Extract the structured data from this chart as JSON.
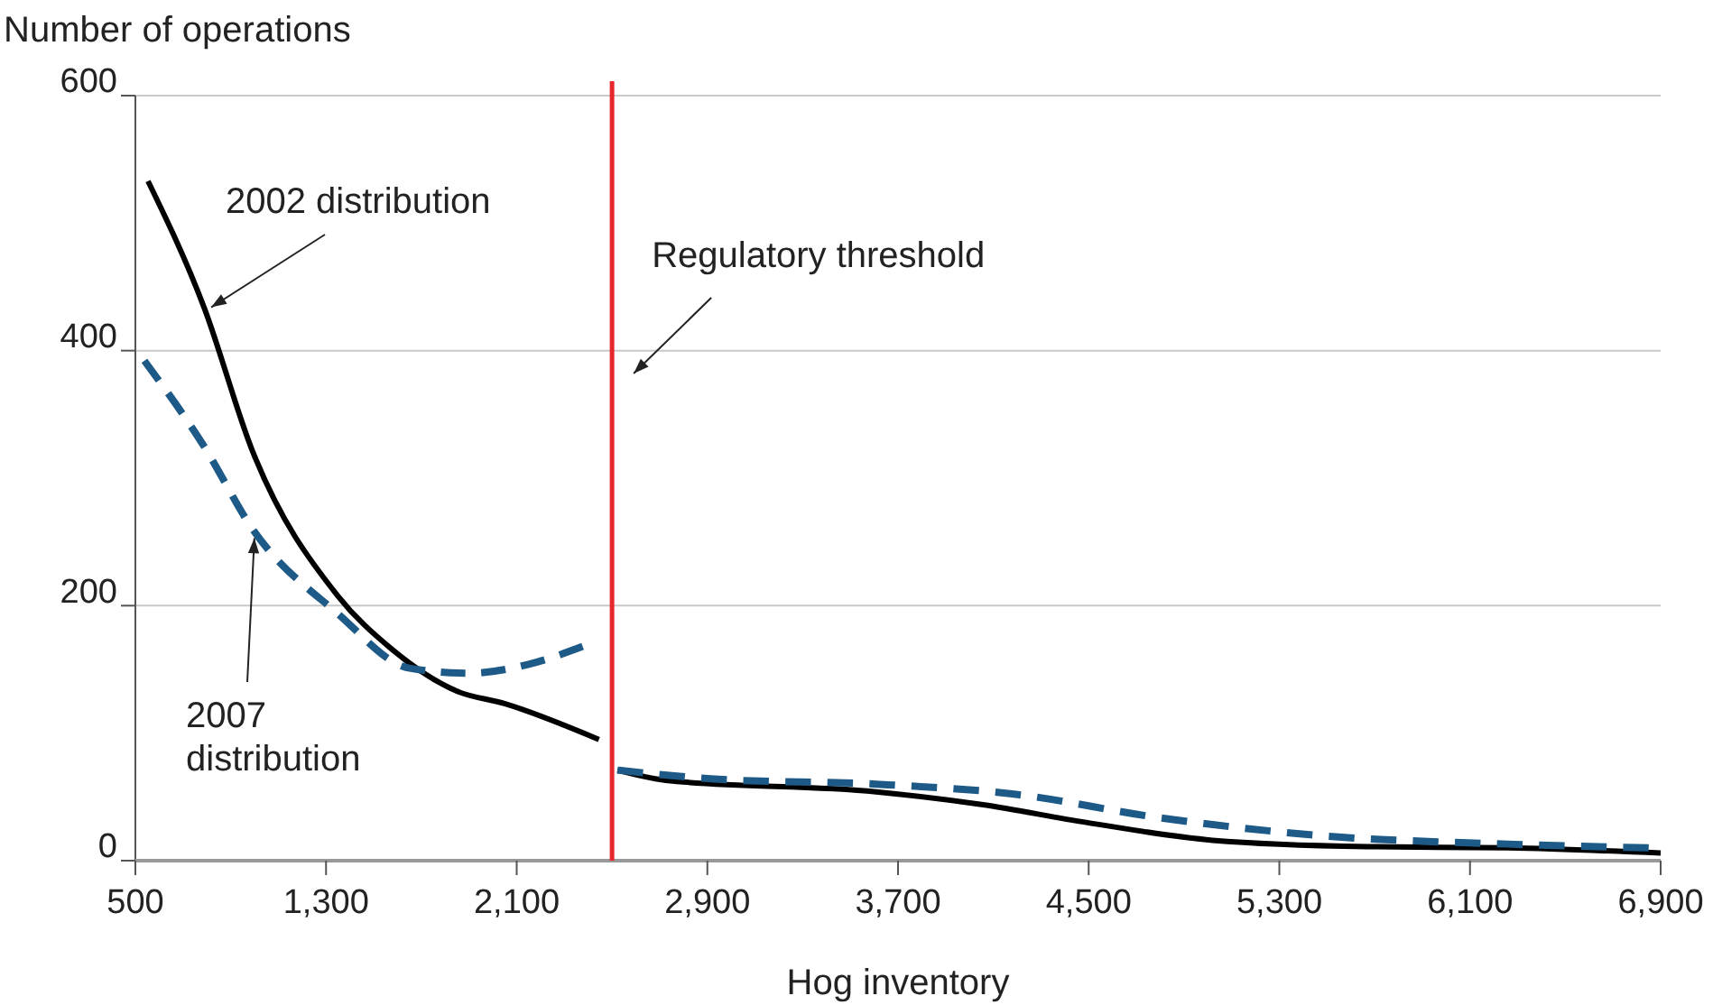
{
  "chart_data": {
    "type": "line",
    "ylabel": "Number of operations",
    "xlabel": "Hog inventory",
    "xlim": [
      500,
      6900
    ],
    "ylim": [
      0,
      600
    ],
    "xticks": [
      {
        "value": 500,
        "label": "500"
      },
      {
        "value": 1300,
        "label": "1,300"
      },
      {
        "value": 2100,
        "label": "2,100"
      },
      {
        "value": 2900,
        "label": "2,900"
      },
      {
        "value": 3700,
        "label": "3,700"
      },
      {
        "value": 4500,
        "label": "4,500"
      },
      {
        "value": 5300,
        "label": "5,300"
      },
      {
        "value": 6100,
        "label": "6,100"
      },
      {
        "value": 6900,
        "label": "6,900"
      }
    ],
    "yticks": [
      0,
      200,
      400,
      600
    ],
    "grid": "y",
    "series": [
      {
        "color": "#000000",
        "line_style": "solid",
        "x": [
          553,
          788,
          992,
          1348,
          1575,
          1848,
          2052,
          2445,
          2500,
          2523,
          2725,
          3608,
          4050,
          4490,
          5020,
          5670,
          6260,
          6900
        ],
        "values": [
          533,
          434,
          321,
          208,
          166,
          133,
          123,
          95,
          null,
          71,
          63,
          54,
          44,
          30,
          16,
          11,
          10,
          6
        ]
      },
      {
        "color": "#1d5a87",
        "line_style": "dashed",
        "x": [
          538,
          788,
          992,
          1348,
          1650,
          1900,
          2150,
          2377,
          2500,
          2523,
          2930,
          3608,
          4195,
          4785,
          5520,
          6260,
          6850
        ],
        "values": [
          392,
          325,
          260,
          194,
          151,
          147,
          154,
          168,
          null,
          71,
          64,
          60,
          52,
          34,
          19,
          13,
          10
        ]
      }
    ],
    "ref_lines": [
      {
        "axis": "x",
        "value": 2500,
        "label": "Regulatory threshold",
        "color": "#e8262d"
      }
    ],
    "annotations": [
      {
        "text": "2002 distribution",
        "x": 788,
        "y": 434
      },
      {
        "text": "2007 distribution",
        "x": 969,
        "y": 253
      }
    ]
  }
}
